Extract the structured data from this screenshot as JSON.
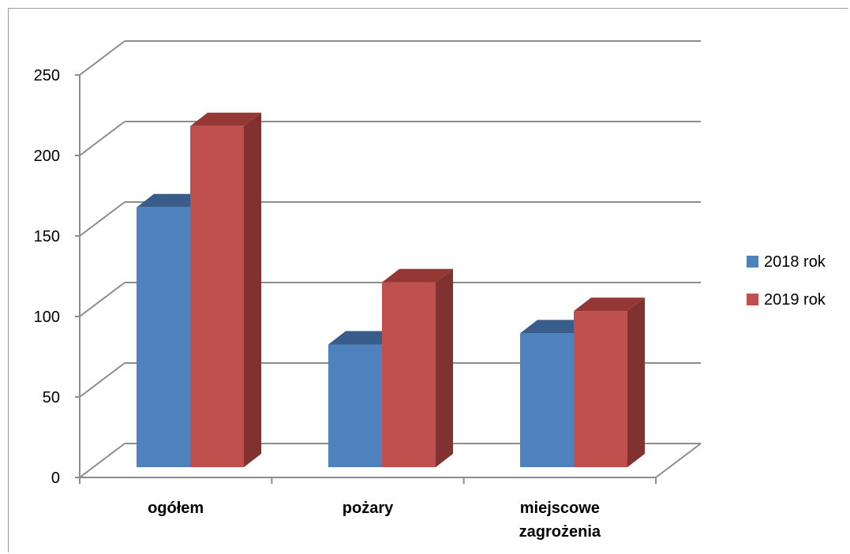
{
  "chart_data": {
    "type": "bar",
    "style": "3d-clustered-column",
    "categories": [
      "ogółem",
      "pożary",
      "miejscowe zagrożenia"
    ],
    "series": [
      {
        "name": "2018 rok",
        "values": [
          163,
          77,
          84
        ],
        "color": "#4f81bd",
        "top_color": "#385d8a",
        "side_color": "#2c4d75"
      },
      {
        "name": "2019 rok",
        "values": [
          214,
          116,
          98
        ],
        "color": "#c0504d",
        "top_color": "#953735",
        "side_color": "#7f3230"
      }
    ],
    "ylim": [
      0,
      250
    ],
    "yticks": [
      "0",
      "50",
      "100",
      "150",
      "200",
      "250"
    ],
    "grid": true,
    "legend_position": "right"
  }
}
